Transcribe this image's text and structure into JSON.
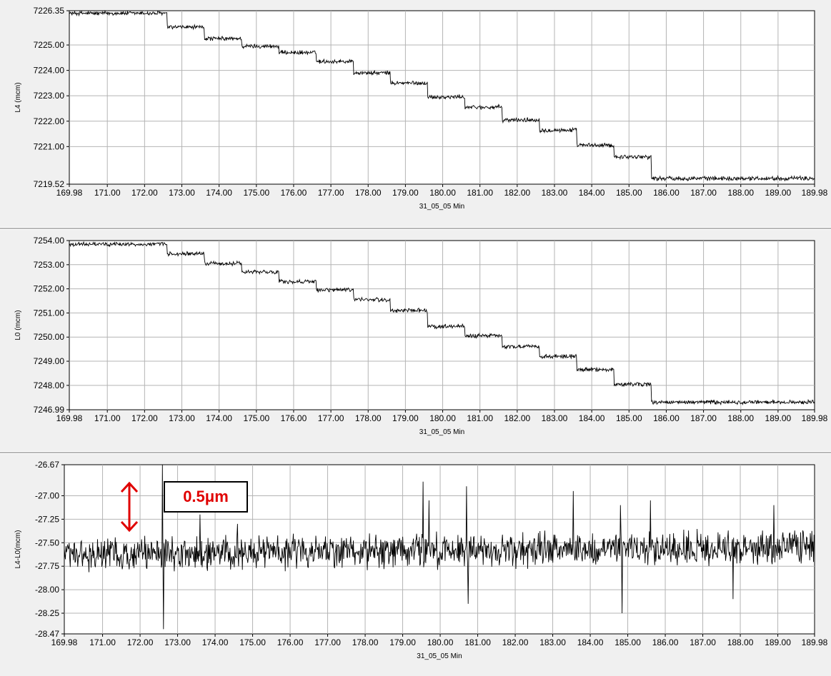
{
  "chart_data": [
    {
      "type": "line",
      "ylabel": "L4 (mcm)",
      "xlabel": "31_05_05 Min",
      "xlim": [
        169.98,
        189.98
      ],
      "ylim": [
        7219.52,
        7226.35
      ],
      "x_ticks": [
        "169.98",
        "171.00",
        "172.00",
        "173.00",
        "174.00",
        "175.00",
        "176.00",
        "177.00",
        "178.00",
        "179.00",
        "180.00",
        "181.00",
        "182.00",
        "183.00",
        "184.00",
        "185.00",
        "186.00",
        "187.00",
        "188.00",
        "189.00",
        "189.98"
      ],
      "y_ticks": [
        "7226.35",
        "7225.00",
        "7224.00",
        "7223.00",
        "7222.00",
        "7221.00",
        "7219.52"
      ],
      "grid": true,
      "noise": 0.07,
      "series": [
        {
          "step_x": [
            169.98,
            172.6,
            173.6,
            174.6,
            175.6,
            176.6,
            177.6,
            178.6,
            179.6,
            180.6,
            181.6,
            182.6,
            183.6,
            184.6,
            185.6,
            189.98
          ],
          "step_y": [
            7226.25,
            7225.7,
            7225.25,
            7224.95,
            7224.7,
            7224.35,
            7223.9,
            7223.5,
            7222.95,
            7222.55,
            7222.05,
            7221.65,
            7221.05,
            7220.6,
            7219.75,
            7219.8
          ]
        }
      ]
    },
    {
      "type": "line",
      "ylabel": "L0 (mcm)",
      "xlabel": "31_05_05 Min",
      "xlim": [
        169.98,
        189.98
      ],
      "ylim": [
        7246.99,
        7254.0
      ],
      "x_ticks": [
        "169.98",
        "171.00",
        "172.00",
        "173.00",
        "174.00",
        "175.00",
        "176.00",
        "177.00",
        "178.00",
        "179.00",
        "180.00",
        "181.00",
        "182.00",
        "183.00",
        "184.00",
        "185.00",
        "186.00",
        "187.00",
        "188.00",
        "189.00",
        "189.98"
      ],
      "y_ticks": [
        "7254.00",
        "7253.00",
        "7252.00",
        "7251.00",
        "7250.00",
        "7249.00",
        "7248.00",
        "7246.99"
      ],
      "grid": true,
      "noise": 0.07,
      "series": [
        {
          "step_x": [
            169.98,
            172.6,
            173.6,
            174.6,
            175.6,
            176.6,
            177.6,
            178.6,
            179.6,
            180.6,
            181.6,
            182.6,
            183.6,
            184.6,
            185.6,
            189.98
          ],
          "step_y": [
            7253.85,
            7253.45,
            7253.05,
            7252.7,
            7252.3,
            7251.95,
            7251.55,
            7251.1,
            7250.45,
            7250.05,
            7249.6,
            7249.2,
            7248.65,
            7248.05,
            7247.3,
            7247.4
          ]
        }
      ]
    },
    {
      "type": "line",
      "ylabel": "L4-L0(mcm)",
      "xlabel": "31_05_05 Min",
      "xlim": [
        169.98,
        189.98
      ],
      "ylim": [
        -28.47,
        -26.67
      ],
      "x_ticks": [
        "169.98",
        "171.00",
        "172.00",
        "173.00",
        "174.00",
        "175.00",
        "176.00",
        "177.00",
        "178.00",
        "179.00",
        "180.00",
        "181.00",
        "182.00",
        "183.00",
        "184.00",
        "185.00",
        "186.00",
        "187.00",
        "188.00",
        "189.00",
        "189.98"
      ],
      "y_ticks": [
        "-26.67",
        "-27.00",
        "-27.25",
        "-27.50",
        "-27.75",
        "-28.00",
        "-28.25",
        "-28.47"
      ],
      "grid": true,
      "noise": 0.14,
      "series": [
        {
          "step_x": [
            169.98,
            189.98
          ],
          "step_y": [
            -27.62,
            -27.55
          ],
          "spikes": [
            [
              172.6,
              -26.67
            ],
            [
              172.63,
              -28.42
            ],
            [
              173.6,
              -27.2
            ],
            [
              174.6,
              -27.3
            ],
            [
              179.55,
              -26.85
            ],
            [
              179.7,
              -27.05
            ],
            [
              180.7,
              -26.9
            ],
            [
              180.75,
              -28.15
            ],
            [
              183.55,
              -26.95
            ],
            [
              184.8,
              -27.1
            ],
            [
              184.85,
              -28.25
            ],
            [
              185.6,
              -27.05
            ],
            [
              187.8,
              -28.1
            ],
            [
              188.9,
              -27.1
            ]
          ]
        }
      ]
    }
  ],
  "annotation": {
    "label": "0.5μm",
    "color": "#e00000"
  }
}
